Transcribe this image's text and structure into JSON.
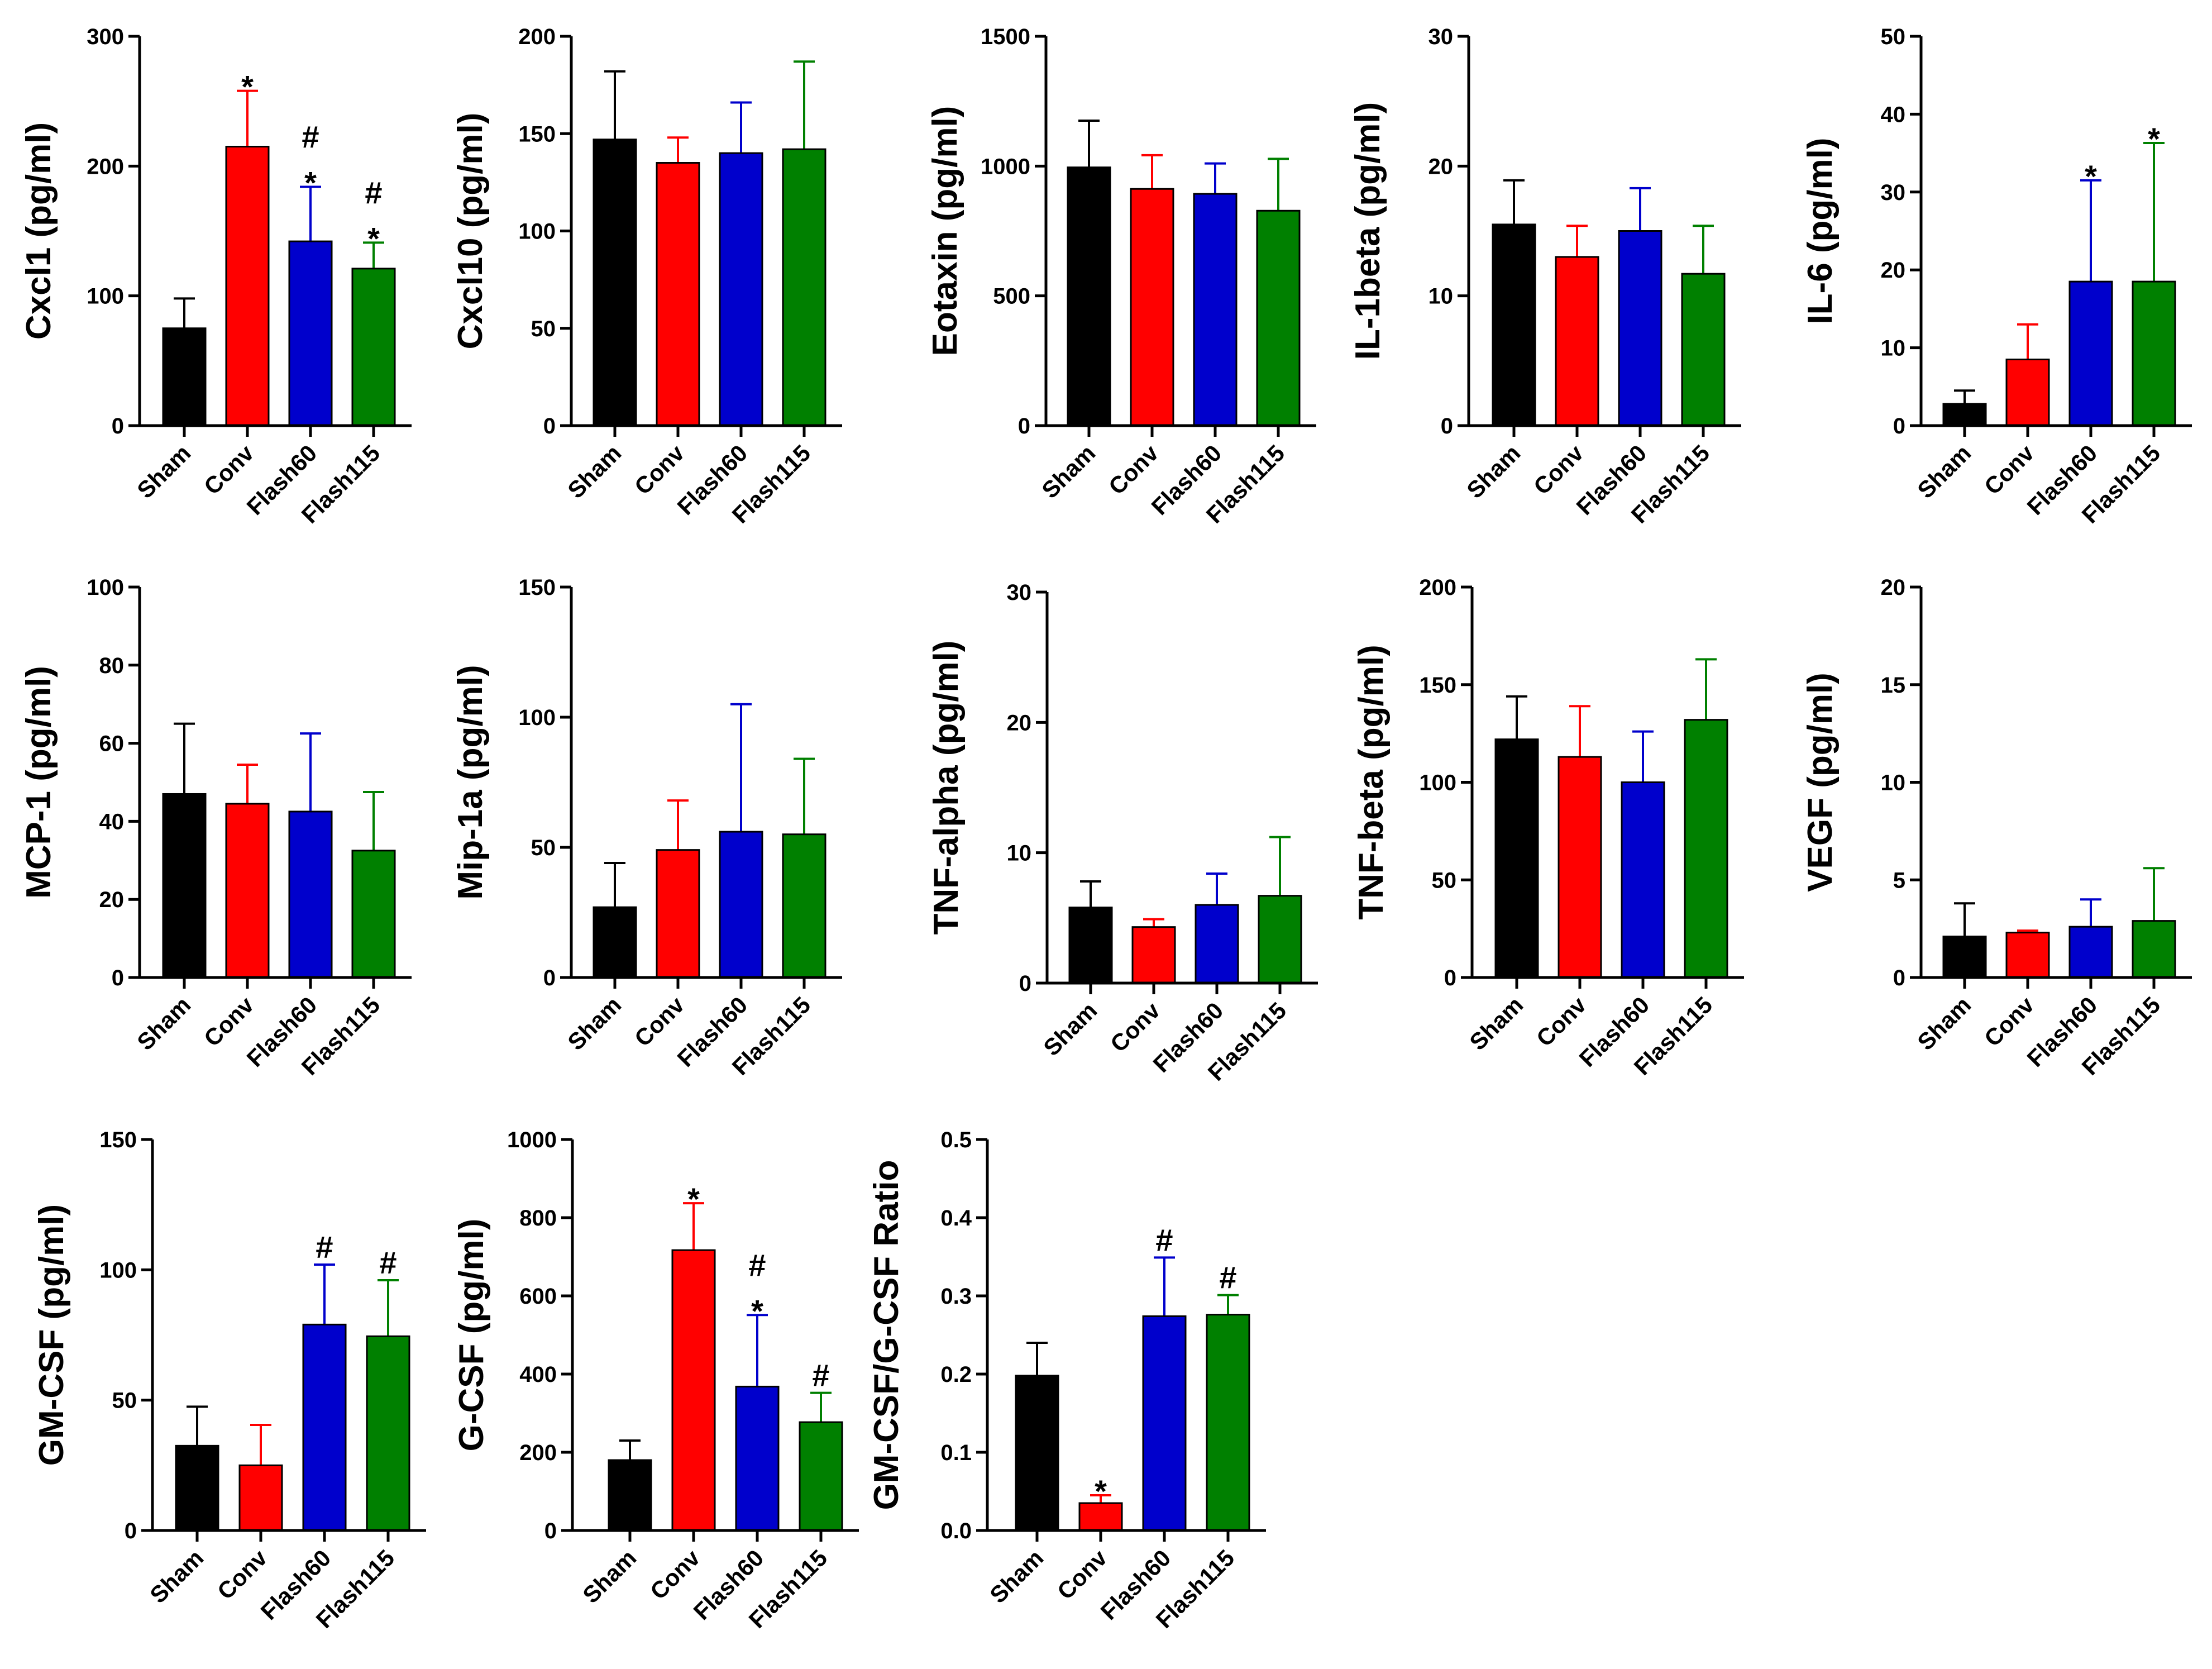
{
  "categories": [
    "Sham",
    "Conv",
    "Flash60",
    "Flash115"
  ],
  "colors": [
    "#000000",
    "#ff0000",
    "#0000cc",
    "#008000"
  ],
  "chart_data": [
    {
      "type": "bar",
      "ylabel": "Cxcl1 (pg/ml)",
      "ylim": [
        0,
        300
      ],
      "yticks": [
        "0",
        "100",
        "200",
        "300"
      ],
      "values": [
        75,
        215,
        142,
        121
      ],
      "errors": [
        23,
        43,
        42,
        20
      ],
      "sig": [
        "",
        "*",
        "#\n*",
        "#\n*"
      ]
    },
    {
      "type": "bar",
      "ylabel": "Cxcl10 (pg/ml)",
      "ylim": [
        0,
        200
      ],
      "yticks": [
        "0",
        "50",
        "100",
        "150",
        "200"
      ],
      "values": [
        147,
        135,
        140,
        142
      ],
      "errors": [
        35,
        13,
        26,
        45
      ],
      "sig": [
        "",
        "",
        "",
        ""
      ]
    },
    {
      "type": "bar",
      "ylabel": "Eotaxin (pg/ml)",
      "ylim": [
        0,
        1500
      ],
      "yticks": [
        "0",
        "500",
        "1000",
        "1500"
      ],
      "values": [
        995,
        912,
        893,
        828
      ],
      "errors": [
        180,
        130,
        117,
        200
      ],
      "sig": [
        "",
        "",
        "",
        ""
      ]
    },
    {
      "type": "bar",
      "ylabel": "IL-1beta (pg/ml)",
      "ylim": [
        0,
        30
      ],
      "yticks": [
        "0",
        "10",
        "20",
        "30"
      ],
      "values": [
        15.5,
        13,
        15,
        11.7
      ],
      "errors": [
        3.4,
        2.4,
        3.3,
        3.7
      ],
      "sig": [
        "",
        "",
        "",
        ""
      ]
    },
    {
      "type": "bar",
      "ylabel": "IL-6 (pg/ml)",
      "ylim": [
        0,
        50
      ],
      "yticks": [
        "0",
        "10",
        "20",
        "30",
        "40",
        "50"
      ],
      "values": [
        2.8,
        8.5,
        18.5,
        18.5
      ],
      "errors": [
        1.7,
        4.5,
        13,
        17.8
      ],
      "sig": [
        "",
        "",
        "*",
        "*"
      ]
    },
    {
      "type": "bar",
      "ylabel": "MCP-1 (pg/ml)",
      "ylim": [
        0,
        100
      ],
      "yticks": [
        "0",
        "20",
        "40",
        "60",
        "80",
        "100"
      ],
      "values": [
        47,
        44.5,
        42.5,
        32.5
      ],
      "errors": [
        18,
        10,
        20,
        15
      ],
      "sig": [
        "",
        "",
        "",
        ""
      ]
    },
    {
      "type": "bar",
      "ylabel": "Mip-1a (pg/ml)",
      "ylim": [
        0,
        150
      ],
      "yticks": [
        "0",
        "50",
        "100",
        "150"
      ],
      "values": [
        27,
        49,
        56,
        55
      ],
      "errors": [
        17,
        19,
        49,
        29
      ],
      "sig": [
        "",
        "",
        "",
        ""
      ]
    },
    {
      "type": "bar",
      "ylabel": "TNF-alpha (pg/ml)",
      "ylim": [
        0,
        30
      ],
      "yticks": [
        "0",
        "10",
        "20",
        "30"
      ],
      "values": [
        5.8,
        4.3,
        6,
        6.7
      ],
      "errors": [
        2,
        0.6,
        2.4,
        4.5
      ],
      "sig": [
        "",
        "",
        "",
        ""
      ]
    },
    {
      "type": "bar",
      "ylabel": "TNF-beta (pg/ml)",
      "ylim": [
        0,
        200
      ],
      "yticks": [
        "0",
        "50",
        "100",
        "150",
        "200"
      ],
      "values": [
        122,
        113,
        100,
        132
      ],
      "errors": [
        22,
        26,
        26,
        31
      ],
      "sig": [
        "",
        "",
        "",
        ""
      ]
    },
    {
      "type": "bar",
      "ylabel": "VEGF (pg/ml)",
      "ylim": [
        0,
        20
      ],
      "yticks": [
        "0",
        "5",
        "10",
        "15",
        "20"
      ],
      "values": [
        2.1,
        2.3,
        2.6,
        2.9
      ],
      "errors": [
        1.7,
        0.1,
        1.4,
        2.7
      ],
      "sig": [
        "",
        "",
        "",
        ""
      ]
    },
    {
      "type": "bar",
      "ylabel": "GM-CSF (pg/ml)",
      "ylim": [
        0,
        150
      ],
      "yticks": [
        "0",
        "50",
        "100",
        "150"
      ],
      "values": [
        32.5,
        25,
        79,
        74.5
      ],
      "errors": [
        15,
        15.5,
        23,
        21.5
      ],
      "sig": [
        "",
        "",
        "#",
        "#"
      ]
    },
    {
      "type": "bar",
      "ylabel": "G-CSF (pg/ml)",
      "ylim": [
        0,
        1000
      ],
      "yticks": [
        "0",
        "200",
        "400",
        "600",
        "800",
        "1000"
      ],
      "values": [
        180,
        717,
        368,
        277
      ],
      "errors": [
        50,
        120,
        183,
        75
      ],
      "sig": [
        "",
        "*",
        "#\n*",
        "#"
      ]
    },
    {
      "type": "bar",
      "ylabel": "GM-CSF/G-CSF Ratio",
      "ylim": [
        0,
        0.5
      ],
      "yticks": [
        "0.0",
        "0.1",
        "0.2",
        "0.3",
        "0.4",
        "0.5"
      ],
      "values": [
        0.198,
        0.035,
        0.274,
        0.276
      ],
      "errors": [
        0.042,
        0.01,
        0.075,
        0.025
      ],
      "sig": [
        "",
        "*",
        "#",
        "#"
      ]
    }
  ]
}
